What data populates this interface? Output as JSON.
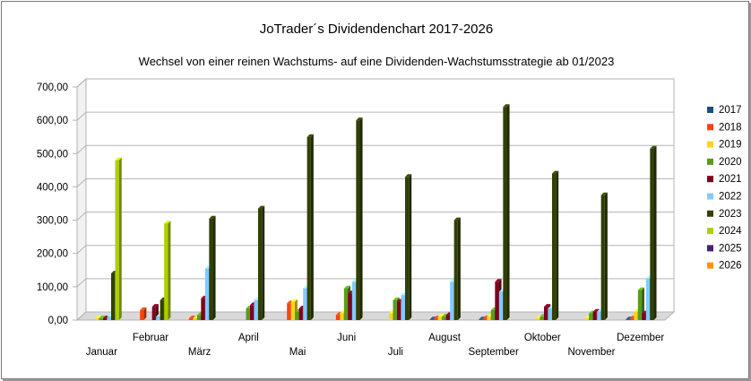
{
  "chart_data": {
    "type": "bar",
    "title": "JoTrader´s Dividendenchart 2017-2026",
    "subtitle": "Wechsel von einer reinen Wachstums- auf eine Dividenden-Wachstumsstrategie ab 01/2023",
    "xlabel": "",
    "ylabel": "",
    "ylim": [
      0,
      700
    ],
    "yticks": [
      "0,00",
      "100,00",
      "200,00",
      "300,00",
      "400,00",
      "500,00",
      "600,00",
      "700,00"
    ],
    "grid": true,
    "legend_position": "right",
    "categories": [
      "Januar",
      "Februar",
      "März",
      "April",
      "Mai",
      "Juni",
      "Juli",
      "August",
      "September",
      "Oktober",
      "November",
      "Dezember"
    ],
    "series": [
      {
        "name": "2017",
        "color": "#1f4e79",
        "values": [
          0,
          0,
          0,
          0,
          0,
          0,
          0,
          2,
          2,
          0,
          0,
          2
        ]
      },
      {
        "name": "2018",
        "color": "#ff420e",
        "values": [
          0,
          30,
          5,
          0,
          50,
          15,
          0,
          5,
          5,
          0,
          0,
          5
        ]
      },
      {
        "name": "2019",
        "color": "#ffd320",
        "values": [
          5,
          0,
          5,
          0,
          55,
          20,
          20,
          10,
          10,
          5,
          5,
          25
        ]
      },
      {
        "name": "2020",
        "color": "#579d1c",
        "values": [
          5,
          0,
          15,
          35,
          25,
          95,
          60,
          10,
          30,
          10,
          20,
          90
        ]
      },
      {
        "name": "2021",
        "color": "#7e0021",
        "values": [
          5,
          40,
          65,
          45,
          35,
          80,
          55,
          15,
          115,
          40,
          25,
          20
        ]
      },
      {
        "name": "2022",
        "color": "#83caff",
        "values": [
          10,
          10,
          155,
          60,
          95,
          115,
          75,
          115,
          85,
          35,
          25,
          125
        ]
      },
      {
        "name": "2023",
        "color": "#314004",
        "values": [
          140,
          60,
          305,
          335,
          550,
          600,
          430,
          300,
          640,
          440,
          375,
          515
        ]
      },
      {
        "name": "2024",
        "color": "#aecf00",
        "values": [
          480,
          290,
          0,
          0,
          0,
          0,
          0,
          0,
          0,
          0,
          0,
          0
        ]
      },
      {
        "name": "2025",
        "color": "#4b1f6f",
        "values": [
          0,
          0,
          0,
          0,
          0,
          0,
          0,
          0,
          0,
          0,
          0,
          0
        ]
      },
      {
        "name": "2026",
        "color": "#ff950e",
        "values": [
          0,
          0,
          0,
          0,
          0,
          0,
          0,
          0,
          0,
          0,
          0,
          0
        ]
      }
    ]
  }
}
